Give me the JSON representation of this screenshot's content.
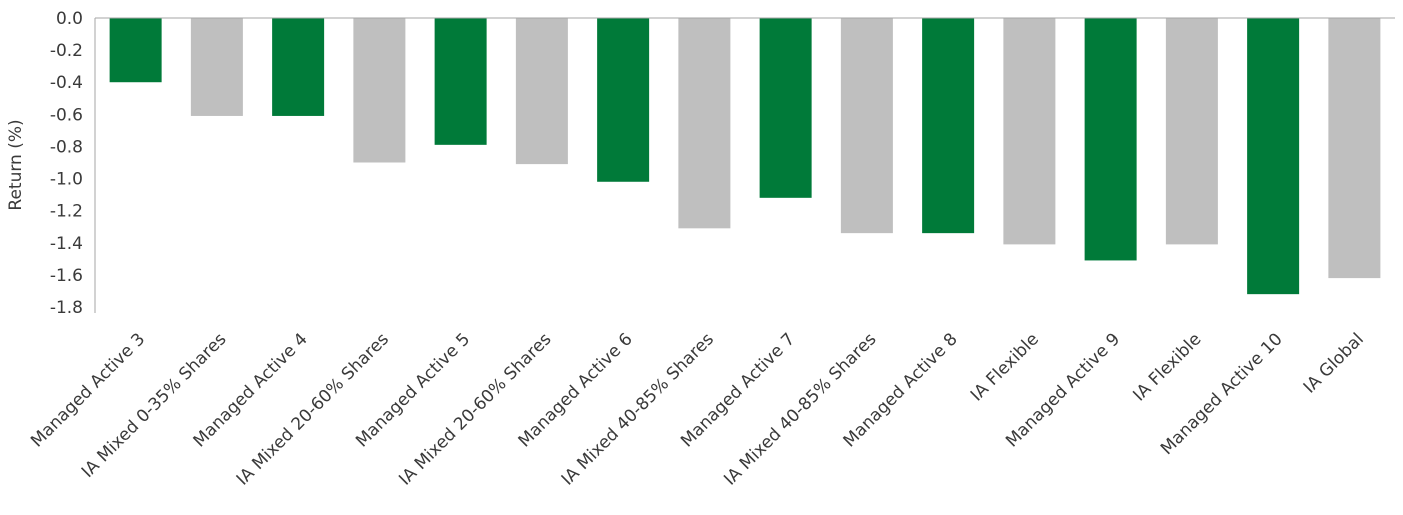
{
  "chart_data": {
    "type": "bar",
    "categories": [
      "Managed Active 3",
      "IA Mixed 0-35%  Shares",
      "Managed Active 4",
      "IA Mixed 20-60% Shares",
      "Managed Active 5",
      "IA Mixed 20-60% Shares",
      "Managed Active 6",
      "IA Mixed 40-85% Shares",
      "Managed Active 7",
      "IA Mixed 40-85% Shares",
      "Managed Active 8",
      "IA Flexible",
      "Managed Active 9",
      "IA Flexible",
      "Managed Active 10",
      "IA Global"
    ],
    "values": [
      -0.4,
      -0.61,
      -0.61,
      -0.9,
      -0.79,
      -0.91,
      -1.02,
      -1.31,
      -1.12,
      -1.34,
      -1.34,
      -1.41,
      -1.51,
      -1.41,
      -1.72,
      -1.62
    ],
    "colors": [
      "#007a39",
      "#bfbfbf",
      "#007a39",
      "#bfbfbf",
      "#007a39",
      "#bfbfbf",
      "#007a39",
      "#bfbfbf",
      "#007a39",
      "#bfbfbf",
      "#007a39",
      "#bfbfbf",
      "#007a39",
      "#bfbfbf",
      "#007a39",
      "#bfbfbf"
    ],
    "ylabel": "Return (%)",
    "ylim": [
      -1.8,
      0.0
    ],
    "yticks": [
      "0.0",
      "-0.2",
      "-0.4",
      "-0.6",
      "-0.8",
      "-1.0",
      "-1.2",
      "-1.4",
      "-1.6",
      "-1.8"
    ],
    "grid": false,
    "legend": "none"
  }
}
